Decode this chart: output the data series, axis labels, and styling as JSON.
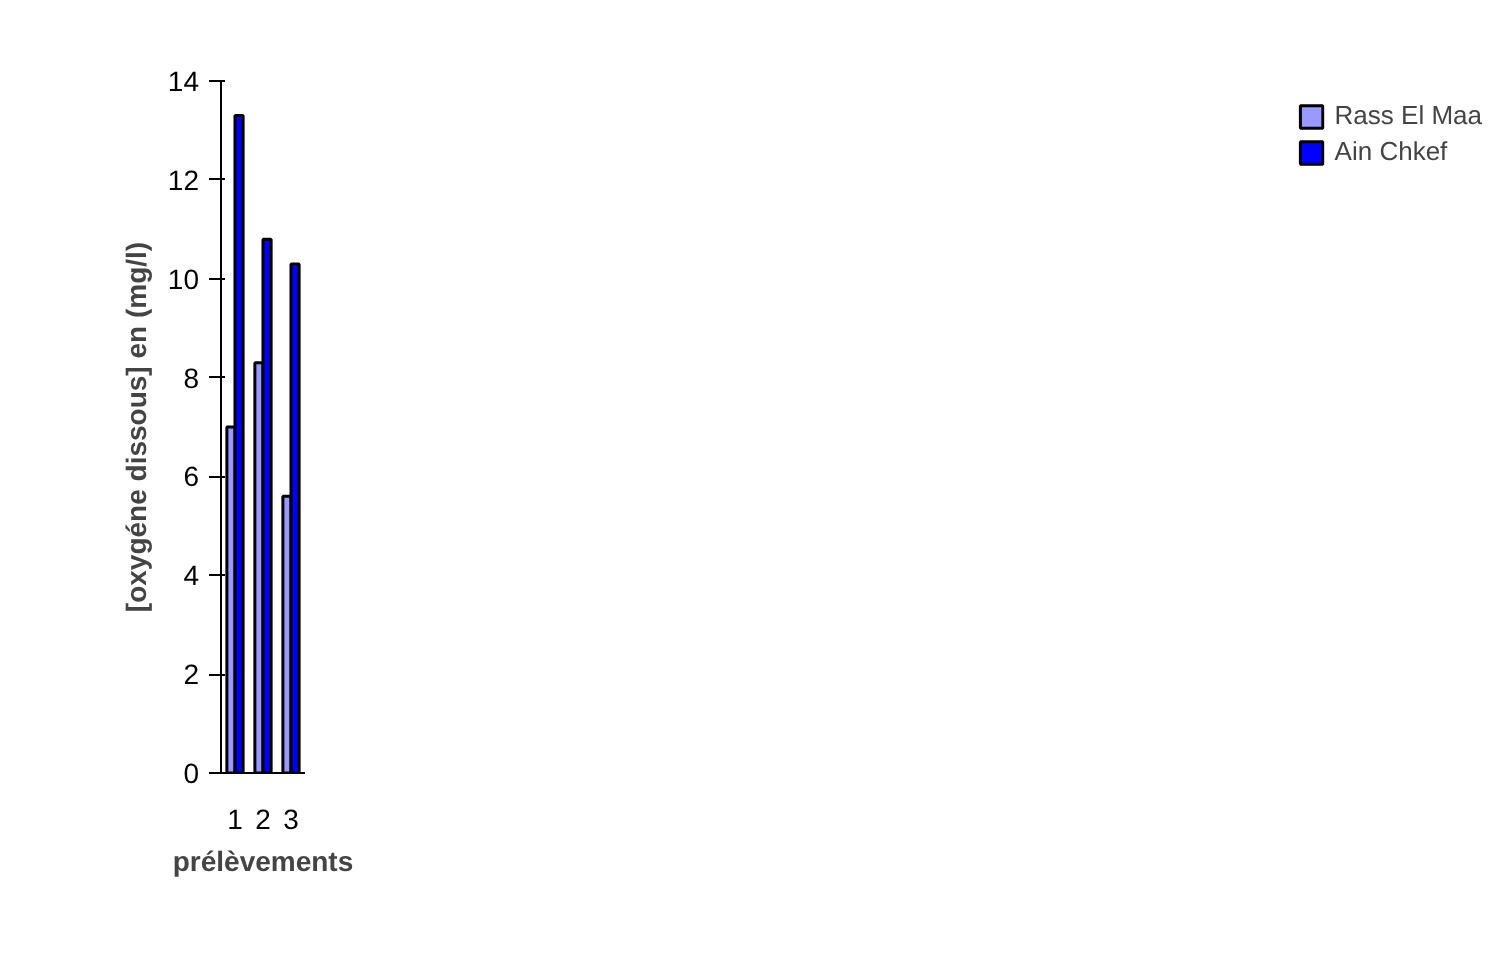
{
  "chart_data": {
    "type": "bar",
    "xlabel": "prélèvements",
    "ylabel": "[oxygéne dissous] en (mg/l)",
    "categories": [
      "1",
      "2",
      "3"
    ],
    "series": [
      {
        "name": "Rass El Maa",
        "color": "#9999ff",
        "values": [
          7.0,
          8.3,
          5.6
        ]
      },
      {
        "name": "Ain Chkef",
        "color": "#0000ff",
        "values": [
          13.3,
          10.8,
          10.3
        ]
      }
    ],
    "ylim": [
      0,
      14
    ],
    "yticks": [
      0,
      2,
      4,
      6,
      8,
      10,
      12,
      14
    ],
    "grid": false,
    "legend": "right"
  }
}
